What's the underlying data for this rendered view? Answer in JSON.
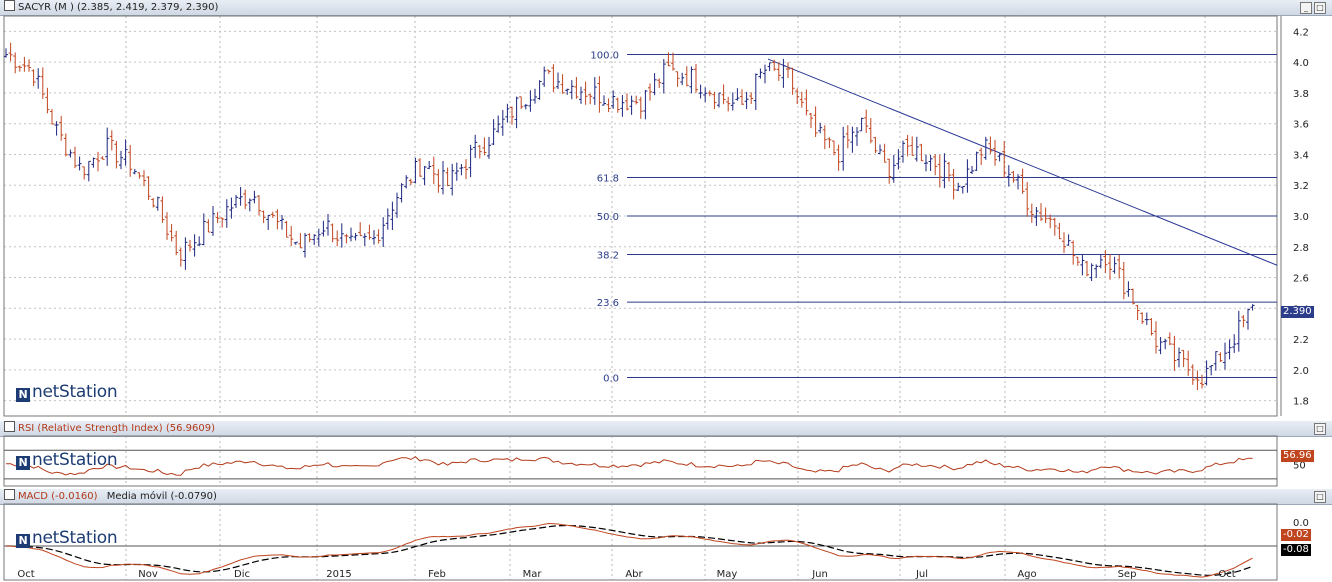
{
  "colors": {
    "up": "#1a237e",
    "down": "#c0441e",
    "fib": "#2b3c8a",
    "trend": "#283593",
    "rsi": "#b23a1a",
    "macd": "#c0441e",
    "signal": "#000000"
  },
  "brand": "netStation",
  "main": {
    "title": "SACYR (M ) (2.385, 2.419, 2.379, 2.390)",
    "last_tag": "2.390",
    "y_ticks": [
      "4.2",
      "4.0",
      "3.8",
      "3.6",
      "3.4",
      "3.2",
      "3.0",
      "2.8",
      "2.6",
      "2.4",
      "2.2",
      "2.0",
      "1.8"
    ]
  },
  "rsi": {
    "title": "RSI (Relative Strength Index) (56.9609)",
    "tick": "50",
    "tag": "56.96"
  },
  "macd": {
    "title_macd": "MACD (-0.0160)",
    "title_ma": "Media móvil (-0.0790)",
    "tick": "0.0",
    "tag_macd": "-0.02",
    "tag_signal": "-0.08"
  },
  "x_ticks": [
    "Oct",
    "Nov",
    "Dic",
    "2015",
    "Feb",
    "Mar",
    "Abr",
    "May",
    "Jun",
    "Jul",
    "Ago",
    "Sep",
    "Oct"
  ],
  "chart_data": [
    {
      "type": "ohlc",
      "title": "SACYR (M ) (2.385, 2.419, 2.379, 2.390)",
      "ylim": [
        1.7,
        4.3
      ],
      "x": [
        "Oct",
        "Nov",
        "Dic",
        "2015",
        "Feb",
        "Mar",
        "Abr",
        "May",
        "Jun",
        "Jul",
        "Ago",
        "Sep",
        "Oct"
      ],
      "close_path": [
        [
          "Oct",
          4.05
        ],
        [
          "Oct",
          3.95
        ],
        [
          "Oct",
          3.55
        ],
        [
          "Oct",
          3.3
        ],
        [
          "Oct",
          3.45
        ],
        [
          "Nov",
          3.35
        ],
        [
          "Nov",
          3.1
        ],
        [
          "Nov",
          2.75
        ],
        [
          "Nov",
          2.9
        ],
        [
          "Dic",
          3.05
        ],
        [
          "Dic",
          3.15
        ],
        [
          "Dic",
          2.95
        ],
        [
          "Dic",
          2.8
        ],
        [
          "Dic",
          2.95
        ],
        [
          "2015",
          2.8
        ],
        [
          "2015",
          2.85
        ],
        [
          "2015",
          3.15
        ],
        [
          "2015",
          3.35
        ],
        [
          "2015",
          3.2
        ],
        [
          "Feb",
          3.4
        ],
        [
          "Feb",
          3.55
        ],
        [
          "Feb",
          3.75
        ],
        [
          "Feb",
          3.9
        ],
        [
          "Mar",
          3.85
        ],
        [
          "Mar",
          3.8
        ],
        [
          "Mar",
          3.75
        ],
        [
          "Mar",
          3.75
        ],
        [
          "Abr",
          3.95
        ],
        [
          "Abr",
          3.9
        ],
        [
          "Abr",
          3.8
        ],
        [
          "May",
          3.7
        ],
        [
          "May",
          3.95
        ],
        [
          "May",
          3.9
        ],
        [
          "May",
          3.55
        ],
        [
          "Jun",
          3.4
        ],
        [
          "Jun",
          3.6
        ],
        [
          "Jun",
          3.3
        ],
        [
          "Jun",
          3.45
        ],
        [
          "Jul",
          3.35
        ],
        [
          "Jul",
          3.2
        ],
        [
          "Jul",
          3.45
        ],
        [
          "Jul",
          3.3
        ],
        [
          "Ago",
          3.05
        ],
        [
          "Ago",
          2.95
        ],
        [
          "Ago",
          2.65
        ],
        [
          "Ago",
          2.75
        ],
        [
          "Sep",
          2.5
        ],
        [
          "Sep",
          2.2
        ],
        [
          "Sep",
          2.05
        ],
        [
          "Oct",
          1.95
        ],
        [
          "Oct",
          2.15
        ],
        [
          "Oct",
          2.39
        ]
      ],
      "last": {
        "open": 2.385,
        "high": 2.419,
        "low": 2.379,
        "close": 2.39
      },
      "fibonacci": [
        {
          "level": "100.0",
          "price": 4.05
        },
        {
          "level": "61.8",
          "price": 3.25
        },
        {
          "level": "50.0",
          "price": 3.0
        },
        {
          "level": "38.2",
          "price": 2.75
        },
        {
          "level": "23.6",
          "price": 2.44
        },
        {
          "level": "0.0",
          "price": 1.95
        }
      ],
      "trendline": {
        "from": [
          "May",
          4.02
        ],
        "to": [
          "Oct",
          2.68
        ]
      }
    },
    {
      "type": "line",
      "title": "RSI (Relative Strength Index) (56.9609)",
      "series": [
        {
          "name": "RSI (Relative Strength Index)",
          "last": 56.9609
        }
      ]
    },
    {
      "type": "line",
      "title": "MACD (-0.0160) Media móvil (-0.0790)",
      "series": [
        {
          "name": "MACD",
          "last": -0.016
        },
        {
          "name": "Media móvil",
          "last": -0.079
        }
      ]
    }
  ]
}
